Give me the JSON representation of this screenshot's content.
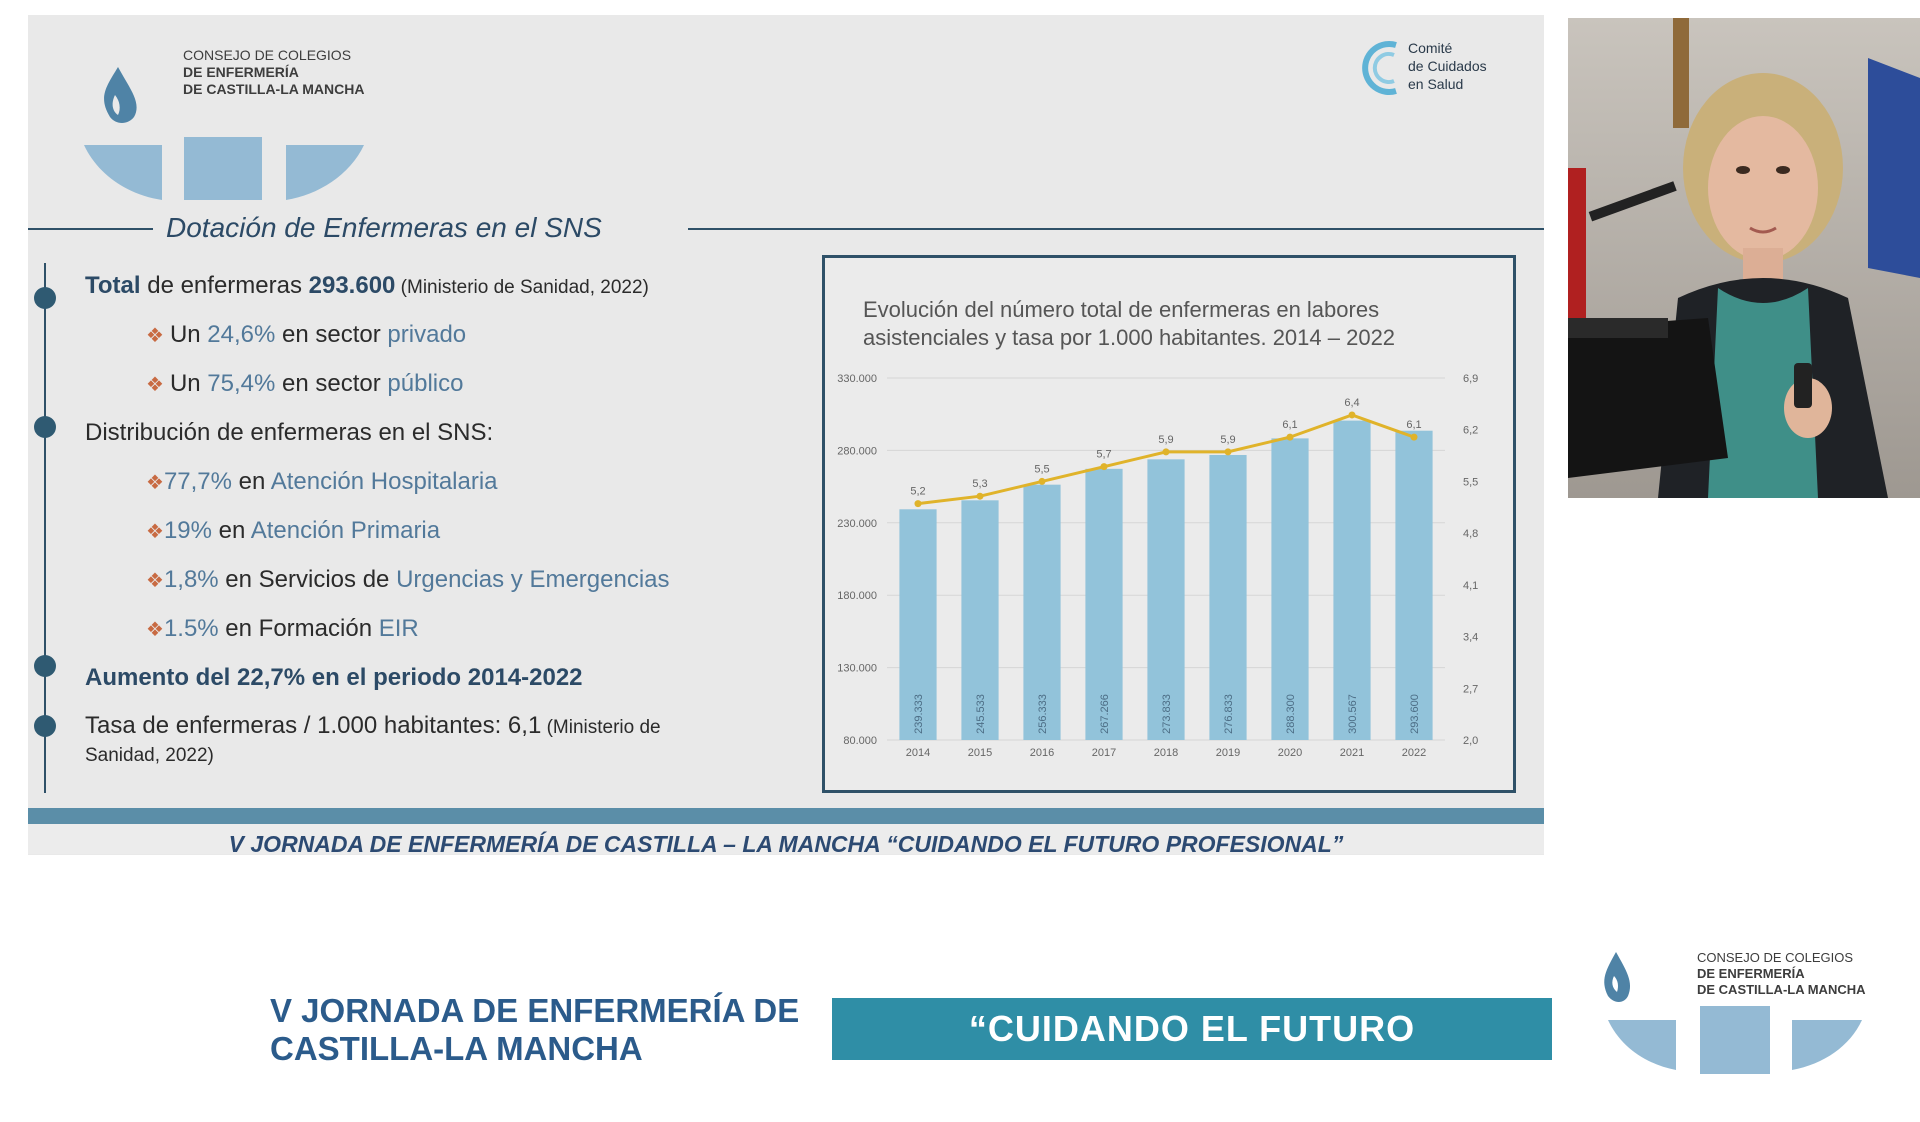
{
  "slide": {
    "org_name": [
      "CONSEJO DE COLEGIOS",
      "DE ENFERMERÍA",
      "DE CASTILLA-LA MANCHA"
    ],
    "comite": [
      "Comité",
      "de Cuidados",
      "en Salud"
    ],
    "title": "Dotación de Enfermeras en el SNS",
    "bullets": {
      "total_prefix": "Total",
      "total_mid": " de enfermeras ",
      "total_value": "293.600",
      "total_source": " (Ministerio de Sanidad, 2022)",
      "privado_a": "Un ",
      "privado_pct": "24,6%",
      "privado_b": " en sector ",
      "privado_c": "privado",
      "publico_a": "Un ",
      "publico_pct": "75,4%",
      "publico_b": " en sector ",
      "publico_c": "público",
      "distribucion": "Distribución de enfermeras en el SNS:",
      "hosp_pct": "77,7%",
      "hosp_b": " en ",
      "hosp_c": "Atención Hospitalaria",
      "prim_pct": "19%",
      "prim_b": " en ",
      "prim_c": "Atención Primaria",
      "urg_pct": "1,8%",
      "urg_b": " en Servicios de ",
      "urg_c": "Urgencias y Emergencias",
      "eir_pct": "1.5%",
      "eir_b": " en Formación ",
      "eir_c": "EIR",
      "aumento": "Aumento del 22,7% en el periodo 2014-2022",
      "tasa": "Tasa de enfermeras / 1.000 habitantes: 6,1",
      "tasa_source_1": " (Ministerio de",
      "tasa_source_2": "Sanidad, 2022)"
    },
    "footer": "V JORNADA DE ENFERMERÍA DE CASTILLA – LA MANCHA “CUIDANDO EL FUTURO PROFESIONAL”"
  },
  "chart_data": {
    "type": "bar",
    "title": "Evolución del número total de enfermeras en labores asistenciales y tasa por 1.000 habitantes. 2014 – 2022",
    "categories": [
      "2014",
      "2015",
      "2016",
      "2017",
      "2018",
      "2019",
      "2020",
      "2021",
      "2022"
    ],
    "series": [
      {
        "values": [
          239333,
          245533,
          256333,
          267266,
          273833,
          276833,
          288300,
          300567,
          293600
        ],
        "labels": [
          "239.333",
          "245.533",
          "256.333",
          "267.266",
          "273.833",
          "276.833",
          "288.300",
          "300.567",
          "293.600"
        ],
        "color": "#92c3da"
      },
      {
        "type": "line",
        "axis": "right",
        "values": [
          5.2,
          5.3,
          5.5,
          5.7,
          5.9,
          5.9,
          6.1,
          6.4,
          6.1
        ],
        "labels": [
          "5,2",
          "5,3",
          "5,5",
          "5,7",
          "5,9",
          "5,9",
          "6,1",
          "6,4",
          "6,1"
        ],
        "color": "#e0b32a"
      }
    ],
    "ylim": [
      80000,
      330000
    ],
    "yticks": [
      "80.000",
      "130.000",
      "180.000",
      "230.000",
      "280.000",
      "330.000"
    ],
    "y2lim": [
      2.0,
      6.9
    ],
    "y2ticks": [
      "2,0",
      "2,7",
      "3,4",
      "4,1",
      "4,8",
      "5,5",
      "6,2",
      "6,9"
    ],
    "grid": true
  },
  "bottom": {
    "left_line1": "V JORNADA DE ENFERMERÍA DE",
    "left_line2": "CASTILLA-LA MANCHA",
    "banner": "“CUIDANDO EL FUTURO PROFESIONAL”",
    "org_name": [
      "CONSEJO DE COLEGIOS",
      "DE ENFERMERÍA",
      "DE CASTILLA-LA MANCHA"
    ]
  },
  "colors": {
    "accent": "#2f5168",
    "light_blue": "#52799a",
    "orange": "#c86a42",
    "teal_banner": "#2f8ea6"
  }
}
